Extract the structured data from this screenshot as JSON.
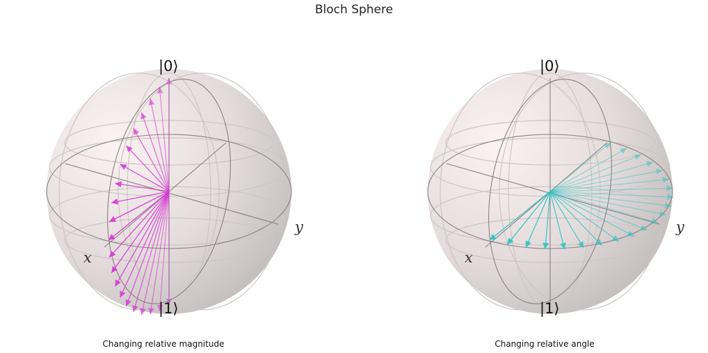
{
  "figure": {
    "title": "Bloch Sphere"
  },
  "spheres": [
    {
      "caption": "Changing relative magnitude",
      "labels": {
        "ket0": "|0⟩",
        "ket1": "|1⟩",
        "x": "x",
        "y": "y"
      },
      "vector_color": "#d63bd6",
      "vectors": {
        "kind": "polar-sweep",
        "count": 21,
        "theta_deg_start": 0,
        "theta_deg_end": 180,
        "phi_deg": 0
      }
    },
    {
      "caption": "Changing relative angle",
      "labels": {
        "ket0": "|0⟩",
        "ket1": "|1⟩",
        "x": "x",
        "y": "y"
      },
      "vector_color": "#2ec4c4",
      "vectors": {
        "kind": "azimuth-sweep",
        "count": 21,
        "theta_deg": 90,
        "phi_deg_start": 0,
        "phi_deg_end": 180
      }
    }
  ],
  "colors": {
    "sphere_fill": "#efe7e7",
    "sphere_shade": "#c9c2c2",
    "frame": "#8a8080",
    "grid": "#cfc8c8"
  }
}
